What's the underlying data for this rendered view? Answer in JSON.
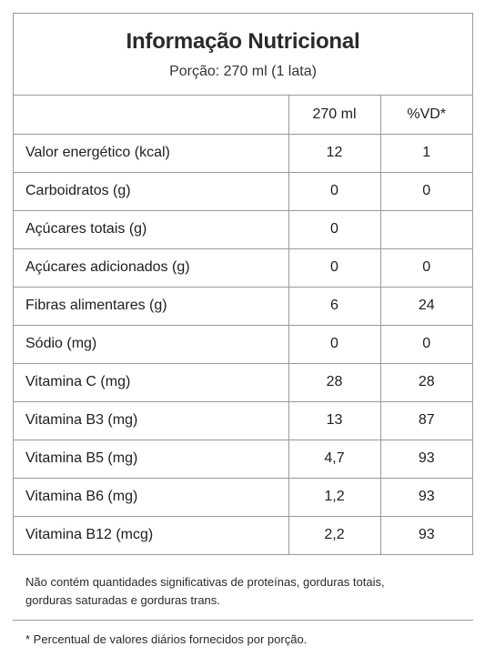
{
  "header": {
    "title": "Informação Nutricional",
    "portion": "Porção: 270 ml (1 lata)"
  },
  "table": {
    "columns": [
      "",
      "270 ml",
      "%VD*"
    ],
    "rows": [
      {
        "name": "Valor energético (kcal)",
        "amount": "12",
        "dv": "1"
      },
      {
        "name": "Carboidratos (g)",
        "amount": "0",
        "dv": "0"
      },
      {
        "name": "Açúcares totais (g)",
        "amount": "0",
        "dv": ""
      },
      {
        "name": "Açúcares adicionados (g)",
        "amount": "0",
        "dv": "0"
      },
      {
        "name": "Fibras alimentares (g)",
        "amount": "6",
        "dv": "24"
      },
      {
        "name": "Sódio (mg)",
        "amount": "0",
        "dv": "0"
      },
      {
        "name": "Vitamina C (mg)",
        "amount": "28",
        "dv": "28"
      },
      {
        "name": "Vitamina B3 (mg)",
        "amount": "13",
        "dv": "87"
      },
      {
        "name": "Vitamina B5 (mg)",
        "amount": "4,7",
        "dv": "93"
      },
      {
        "name": "Vitamina B6 (mg)",
        "amount": "1,2",
        "dv": "93"
      },
      {
        "name": "Vitamina B12 (mcg)",
        "amount": "2,2",
        "dv": "93"
      }
    ]
  },
  "notes": {
    "disclaimer_line1": "Não contém quantidades significativas de proteínas, gorduras totais,",
    "disclaimer_line2": "gorduras saturadas e gorduras trans.",
    "footnote": "* Percentual de valores diários fornecidos por porção."
  },
  "colors": {
    "border": "#9a9a9a",
    "text": "#1e1e1e"
  }
}
